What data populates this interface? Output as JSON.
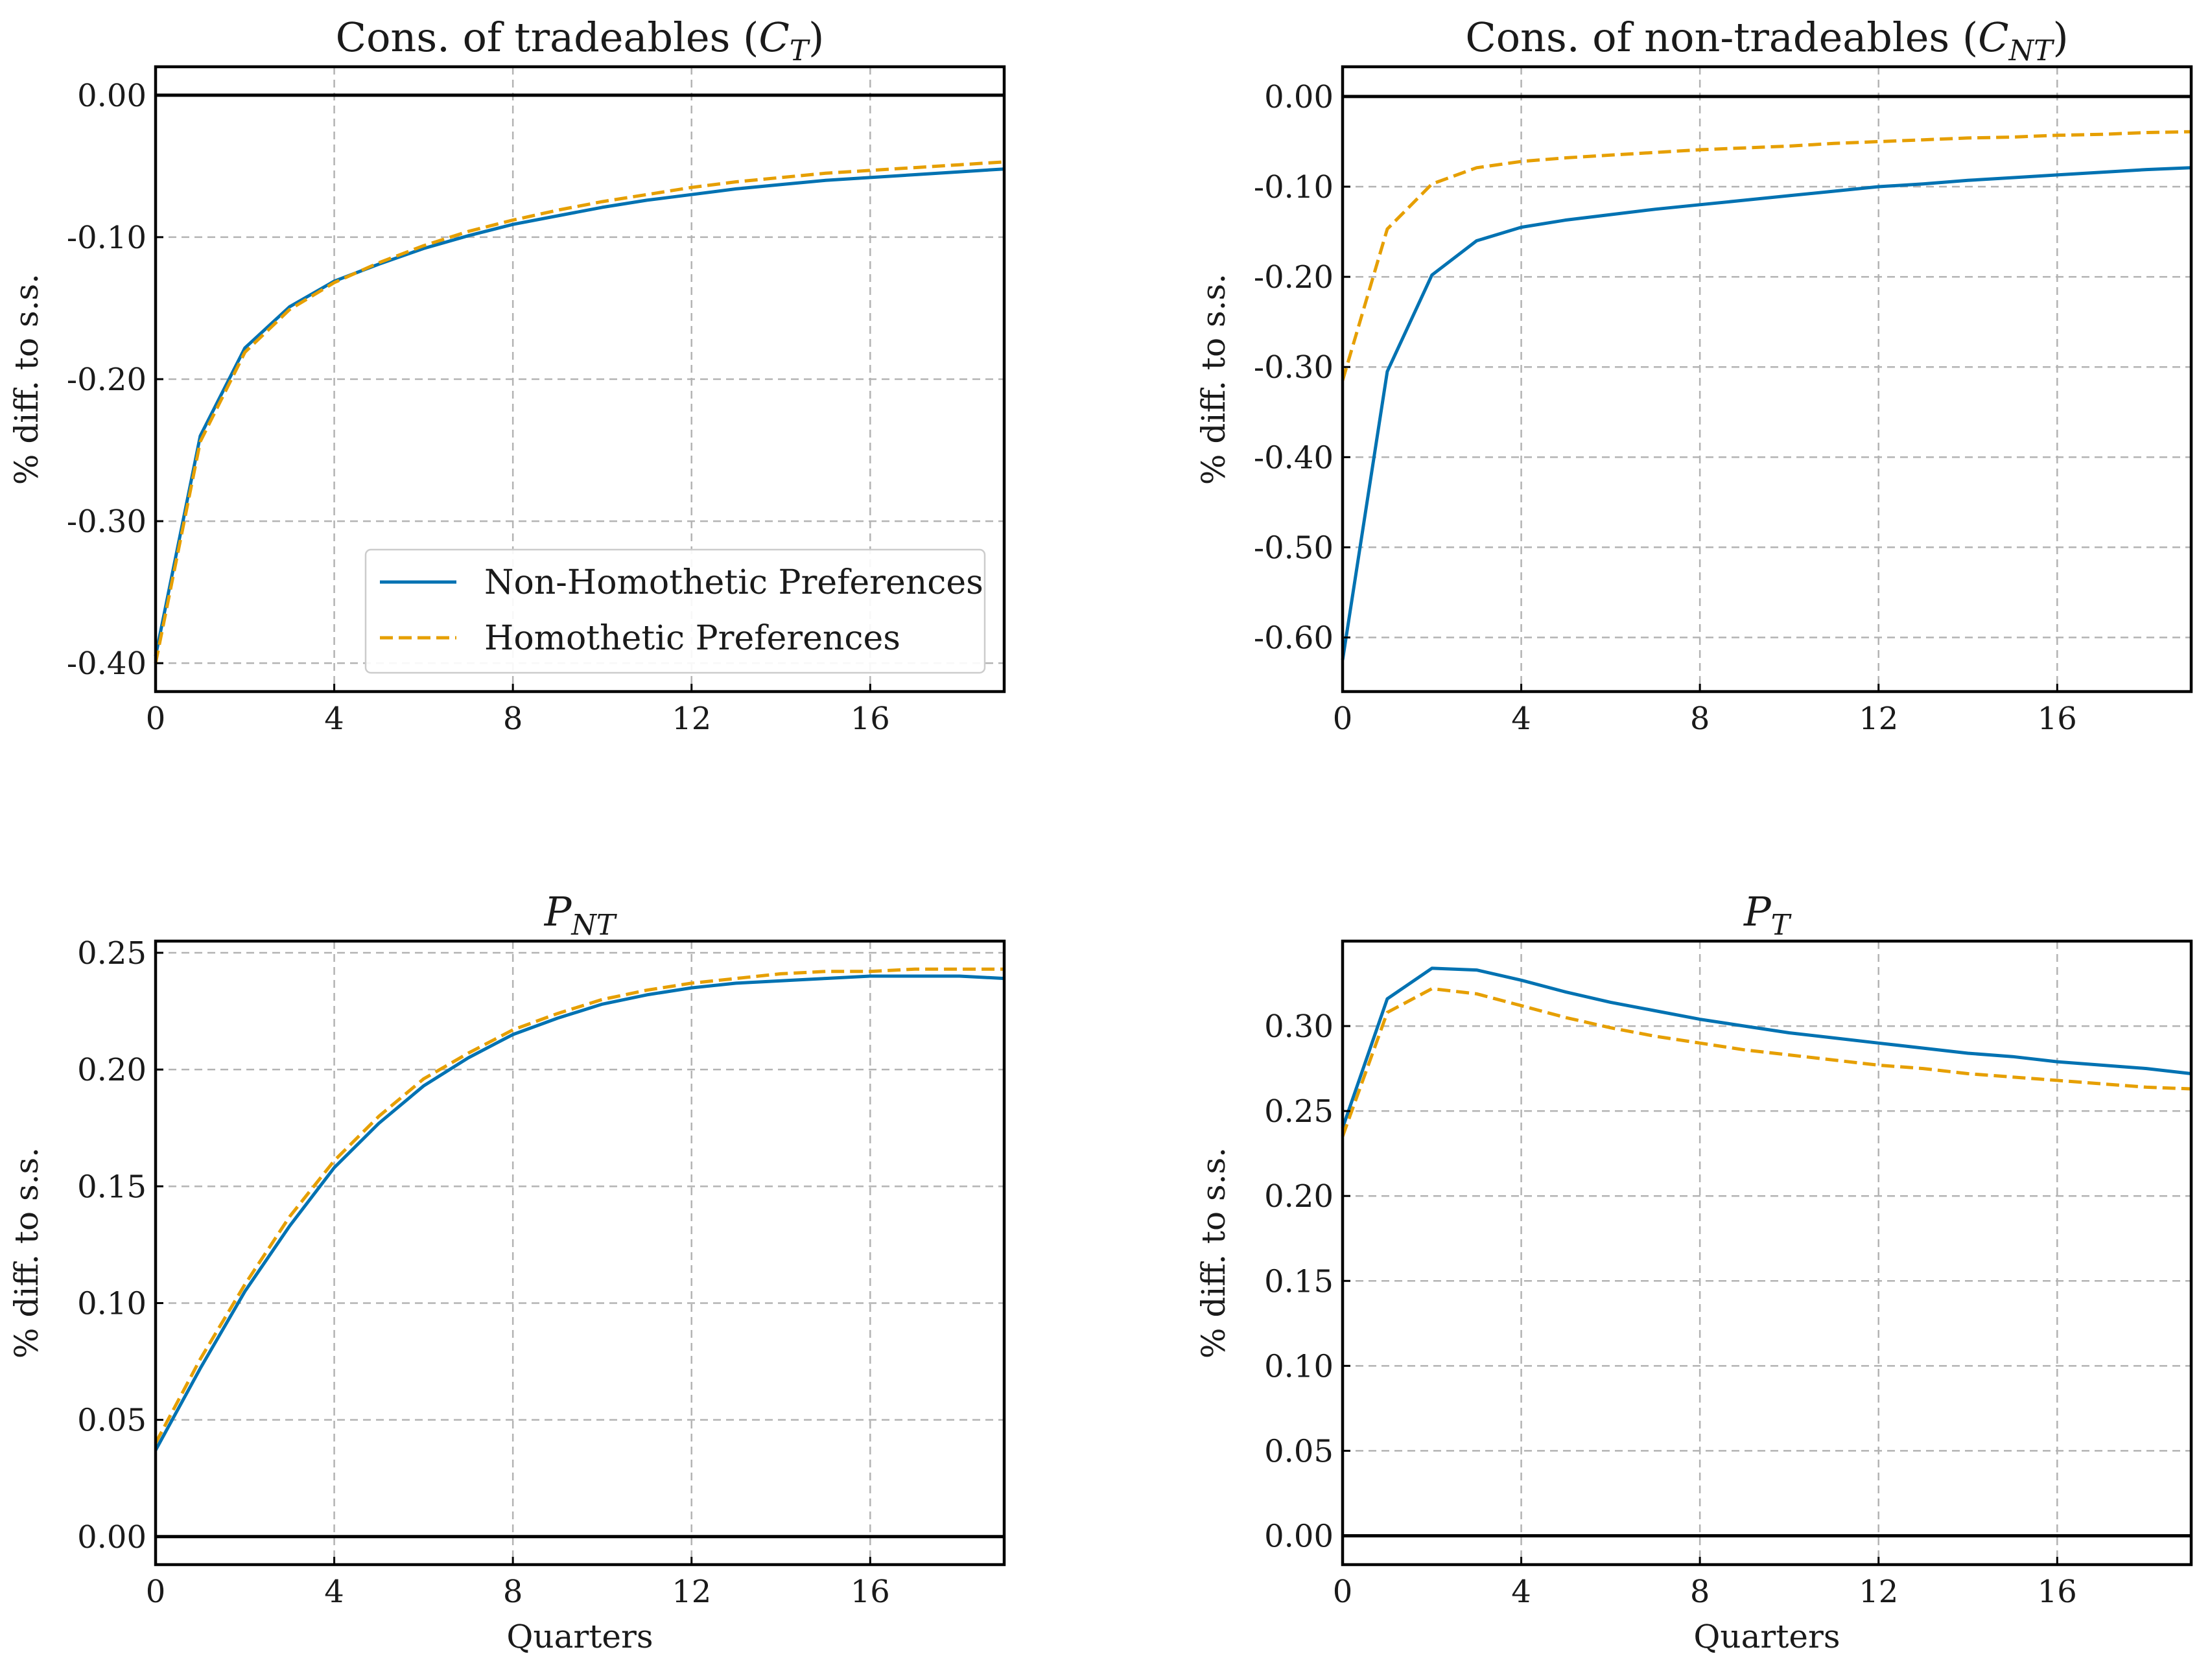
{
  "chart_data": [
    {
      "type": "line",
      "title": "Cons. of tradeables (C_T)",
      "title_parts": [
        {
          "t": "Cons. of tradeables ("
        },
        {
          "t": "C",
          "italic": true
        },
        {
          "t": "T",
          "sub": true,
          "italic": true
        },
        {
          "t": ")"
        }
      ],
      "xlabel": "",
      "ylabel": "% diff. to s.s.",
      "x": [
        0,
        1,
        2,
        3,
        4,
        5,
        6,
        7,
        8,
        9,
        10,
        11,
        12,
        13,
        14,
        15,
        16,
        17,
        18,
        19
      ],
      "xlim": [
        0,
        19
      ],
      "ylim": [
        -0.42,
        0.02
      ],
      "xticks": [
        0,
        4,
        8,
        12,
        16
      ],
      "yticks": [
        0.0,
        -0.1,
        -0.2,
        -0.3,
        -0.4
      ],
      "ytick_labels": [
        "0.00",
        "-0.10",
        "-0.20",
        "-0.30",
        "-0.40"
      ],
      "zero_line": 0,
      "legend": "lower right",
      "series": [
        {
          "name": "Non-Homothetic Preferences",
          "color": "#0072B2",
          "dash": "solid",
          "values": [
            -0.395,
            -0.24,
            -0.178,
            -0.149,
            -0.131,
            -0.119,
            -0.108,
            -0.099,
            -0.091,
            -0.085,
            -0.079,
            -0.074,
            -0.07,
            -0.066,
            -0.063,
            -0.06,
            -0.058,
            -0.056,
            -0.054,
            -0.052
          ]
        },
        {
          "name": "Homothetic Preferences",
          "color": "#E69F00",
          "dash": "dashed",
          "values": [
            -0.4,
            -0.244,
            -0.181,
            -0.151,
            -0.132,
            -0.118,
            -0.106,
            -0.096,
            -0.088,
            -0.081,
            -0.075,
            -0.07,
            -0.065,
            -0.061,
            -0.058,
            -0.055,
            -0.053,
            -0.051,
            -0.049,
            -0.047
          ]
        }
      ]
    },
    {
      "type": "line",
      "title": "Cons. of non-tradeables (C_NT)",
      "title_parts": [
        {
          "t": "Cons. of non-tradeables ("
        },
        {
          "t": "C",
          "italic": true
        },
        {
          "t": "NT",
          "sub": true,
          "italic": true
        },
        {
          "t": ")"
        }
      ],
      "xlabel": "",
      "ylabel": "% diff. to s.s.",
      "x": [
        0,
        1,
        2,
        3,
        4,
        5,
        6,
        7,
        8,
        9,
        10,
        11,
        12,
        13,
        14,
        15,
        16,
        17,
        18,
        19
      ],
      "xlim": [
        0,
        19
      ],
      "ylim": [
        -0.66,
        0.033
      ],
      "xticks": [
        0,
        4,
        8,
        12,
        16
      ],
      "yticks": [
        0.0,
        -0.1,
        -0.2,
        -0.3,
        -0.4,
        -0.5,
        -0.6
      ],
      "ytick_labels": [
        "0.00",
        "-0.10",
        "-0.20",
        "-0.30",
        "-0.40",
        "-0.50",
        "-0.60"
      ],
      "zero_line": 0,
      "series": [
        {
          "name": "Non-Homothetic Preferences",
          "color": "#0072B2",
          "dash": "solid",
          "values": [
            -0.625,
            -0.305,
            -0.198,
            -0.16,
            -0.145,
            -0.137,
            -0.131,
            -0.125,
            -0.12,
            -0.115,
            -0.11,
            -0.105,
            -0.1,
            -0.097,
            -0.093,
            -0.09,
            -0.087,
            -0.084,
            -0.081,
            -0.079
          ]
        },
        {
          "name": "Homothetic Preferences",
          "color": "#E69F00",
          "dash": "dashed",
          "values": [
            -0.315,
            -0.147,
            -0.097,
            -0.079,
            -0.072,
            -0.068,
            -0.065,
            -0.062,
            -0.059,
            -0.057,
            -0.055,
            -0.052,
            -0.05,
            -0.048,
            -0.046,
            -0.045,
            -0.043,
            -0.042,
            -0.04,
            -0.039
          ]
        }
      ]
    },
    {
      "type": "line",
      "title": "P_NT",
      "title_parts": [
        {
          "t": "P",
          "italic": true
        },
        {
          "t": "NT",
          "sub": true,
          "italic": true
        }
      ],
      "xlabel": "Quarters",
      "ylabel": "% diff. to s.s.",
      "x": [
        0,
        1,
        2,
        3,
        4,
        5,
        6,
        7,
        8,
        9,
        10,
        11,
        12,
        13,
        14,
        15,
        16,
        17,
        18,
        19
      ],
      "xlim": [
        0,
        19
      ],
      "ylim": [
        -0.012,
        0.255
      ],
      "xticks": [
        0,
        4,
        8,
        12,
        16
      ],
      "yticks": [
        0.0,
        0.05,
        0.1,
        0.15,
        0.2,
        0.25
      ],
      "ytick_labels": [
        "0.00",
        "0.05",
        "0.10",
        "0.15",
        "0.20",
        "0.25"
      ],
      "zero_line": 0,
      "series": [
        {
          "name": "Non-Homothetic Preferences",
          "color": "#0072B2",
          "dash": "solid",
          "values": [
            0.037,
            0.072,
            0.105,
            0.133,
            0.158,
            0.177,
            0.193,
            0.205,
            0.215,
            0.222,
            0.228,
            0.232,
            0.235,
            0.237,
            0.238,
            0.239,
            0.24,
            0.24,
            0.24,
            0.239
          ]
        },
        {
          "name": "Homothetic Preferences",
          "color": "#E69F00",
          "dash": "dashed",
          "values": [
            0.04,
            0.076,
            0.108,
            0.137,
            0.161,
            0.18,
            0.196,
            0.207,
            0.217,
            0.224,
            0.23,
            0.234,
            0.237,
            0.239,
            0.241,
            0.242,
            0.242,
            0.243,
            0.243,
            0.243
          ]
        }
      ]
    },
    {
      "type": "line",
      "title": "P_T",
      "title_parts": [
        {
          "t": "P",
          "italic": true
        },
        {
          "t": "T",
          "sub": true,
          "italic": true
        }
      ],
      "xlabel": "Quarters",
      "ylabel": "% diff. to s.s.",
      "x": [
        0,
        1,
        2,
        3,
        4,
        5,
        6,
        7,
        8,
        9,
        10,
        11,
        12,
        13,
        14,
        15,
        16,
        17,
        18,
        19
      ],
      "xlim": [
        0,
        19
      ],
      "ylim": [
        -0.017,
        0.35
      ],
      "xticks": [
        0,
        4,
        8,
        12,
        16
      ],
      "yticks": [
        0.0,
        0.05,
        0.1,
        0.15,
        0.2,
        0.25,
        0.3
      ],
      "ytick_labels": [
        "0.00",
        "0.05",
        "0.10",
        "0.15",
        "0.20",
        "0.25",
        "0.30"
      ],
      "zero_line": 0,
      "series": [
        {
          "name": "Non-Homothetic Preferences",
          "color": "#0072B2",
          "dash": "solid",
          "values": [
            0.24,
            0.316,
            0.334,
            0.333,
            0.327,
            0.32,
            0.314,
            0.309,
            0.304,
            0.3,
            0.296,
            0.293,
            0.29,
            0.287,
            0.284,
            0.282,
            0.279,
            0.277,
            0.275,
            0.272
          ]
        },
        {
          "name": "Homothetic Preferences",
          "color": "#E69F00",
          "dash": "dashed",
          "values": [
            0.235,
            0.308,
            0.322,
            0.319,
            0.312,
            0.305,
            0.299,
            0.294,
            0.29,
            0.286,
            0.283,
            0.28,
            0.277,
            0.275,
            0.272,
            0.27,
            0.268,
            0.266,
            0.264,
            0.263
          ]
        }
      ]
    }
  ],
  "legend": {
    "items": [
      {
        "label": "Non-Homothetic Preferences",
        "color": "#0072B2",
        "dash": "solid"
      },
      {
        "label": "Homothetic Preferences",
        "color": "#E69F00",
        "dash": "dashed"
      }
    ]
  }
}
